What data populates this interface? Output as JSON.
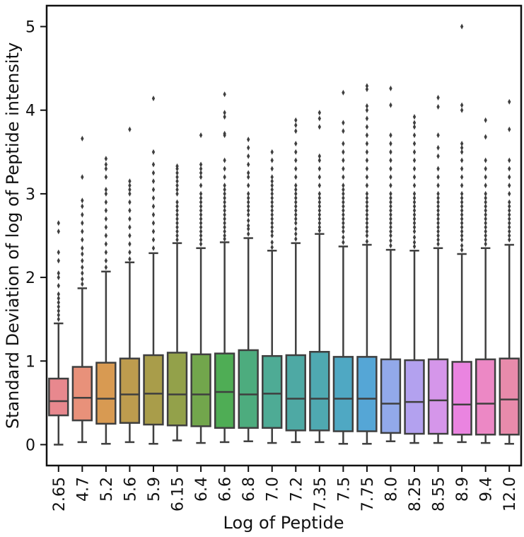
{
  "chart_data": {
    "type": "box",
    "title": "",
    "xlabel": "Log of Peptide",
    "ylabel": "Standard Deviation of log of Peptide intensity",
    "ylim": [
      -0.25,
      5.25
    ],
    "yticks": [
      0,
      1,
      2,
      3,
      4,
      5
    ],
    "grid": false,
    "legend": "none",
    "categories": [
      "2.65",
      "4.7",
      "5.2",
      "5.6",
      "5.9",
      "6.15",
      "6.4",
      "6.6",
      "6.8",
      "7.0",
      "7.2",
      "7.35",
      "7.5",
      "7.75",
      "8.0",
      "8.25",
      "8.55",
      "8.9",
      "9.4",
      "12.0"
    ],
    "boxes": [
      {
        "category": "2.65",
        "color": "#e8888e",
        "min": 0.0,
        "q1": 0.35,
        "median": 0.52,
        "q3": 0.79,
        "whisker_high": 1.45,
        "outliers": [
          1.5,
          1.55,
          1.6,
          1.65,
          1.7,
          1.75,
          1.8,
          1.9,
          2.0,
          2.05,
          2.2,
          2.3,
          2.55,
          2.65
        ]
      },
      {
        "category": "4.7",
        "color": "#e8917a",
        "min": 0.03,
        "q1": 0.29,
        "median": 0.56,
        "q3": 0.93,
        "whisker_high": 1.87,
        "outliers": [
          1.92,
          1.98,
          2.05,
          2.12,
          2.2,
          2.28,
          2.35,
          2.45,
          2.55,
          2.65,
          2.75,
          2.85,
          2.92,
          3.2,
          3.66
        ]
      },
      {
        "category": "5.2",
        "color": "#d89a52",
        "min": 0.01,
        "q1": 0.25,
        "median": 0.55,
        "q3": 0.98,
        "whisker_high": 2.07,
        "outliers": [
          2.12,
          2.2,
          2.3,
          2.4,
          2.5,
          2.6,
          2.7,
          2.8,
          2.9,
          3.0,
          3.05,
          3.2,
          3.3,
          3.35,
          3.42
        ]
      },
      {
        "category": "5.6",
        "color": "#bd9c4e",
        "min": 0.03,
        "q1": 0.26,
        "median": 0.6,
        "q3": 1.03,
        "whisker_high": 2.18,
        "outliers": [
          2.22,
          2.3,
          2.4,
          2.5,
          2.6,
          2.7,
          2.8,
          2.9,
          3.0,
          3.05,
          3.1,
          3.15,
          3.77
        ]
      },
      {
        "category": "5.9",
        "color": "#a99d4a",
        "min": 0.01,
        "q1": 0.24,
        "median": 0.61,
        "q3": 1.07,
        "whisker_high": 2.29,
        "outliers": [
          2.35,
          2.45,
          2.55,
          2.65,
          2.75,
          2.85,
          2.95,
          3.05,
          3.15,
          3.25,
          3.35,
          3.5,
          4.14
        ]
      },
      {
        "category": "6.15",
        "color": "#93a14a",
        "min": 0.05,
        "q1": 0.23,
        "median": 0.6,
        "q3": 1.1,
        "whisker_high": 2.41,
        "outliers": [
          2.45,
          2.5,
          2.55,
          2.6,
          2.65,
          2.7,
          2.75,
          2.8,
          2.85,
          2.9,
          3.0,
          3.05,
          3.1,
          3.15,
          3.2,
          3.25,
          3.3,
          3.33
        ]
      },
      {
        "category": "6.4",
        "color": "#72a64c",
        "min": 0.02,
        "q1": 0.22,
        "median": 0.6,
        "q3": 1.08,
        "whisker_high": 2.35,
        "outliers": [
          2.4,
          2.45,
          2.5,
          2.55,
          2.6,
          2.65,
          2.7,
          2.75,
          2.8,
          2.85,
          2.9,
          2.95,
          3.0,
          3.1,
          3.2,
          3.25,
          3.3,
          3.35,
          3.7
        ]
      },
      {
        "category": "6.6",
        "color": "#4fad55",
        "min": 0.03,
        "q1": 0.2,
        "median": 0.63,
        "q3": 1.09,
        "whisker_high": 2.42,
        "outliers": [
          2.46,
          2.5,
          2.55,
          2.6,
          2.65,
          2.7,
          2.75,
          2.8,
          2.85,
          2.9,
          2.95,
          3.0,
          3.05,
          3.1,
          3.2,
          3.3,
          3.4,
          3.7,
          3.72,
          3.92,
          3.97,
          4.19
        ]
      },
      {
        "category": "6.8",
        "color": "#4dac7e",
        "min": 0.04,
        "q1": 0.2,
        "median": 0.6,
        "q3": 1.13,
        "whisker_high": 2.47,
        "outliers": [
          2.52,
          2.58,
          2.62,
          2.68,
          2.75,
          2.8,
          2.85,
          2.9,
          2.95,
          3.0,
          3.1,
          3.2,
          3.25,
          3.35,
          3.45,
          3.55,
          3.65
        ]
      },
      {
        "category": "7.0",
        "color": "#4eab95",
        "min": 0.02,
        "q1": 0.2,
        "median": 0.61,
        "q3": 1.06,
        "whisker_high": 2.32,
        "outliers": [
          2.36,
          2.42,
          2.5,
          2.55,
          2.6,
          2.65,
          2.7,
          2.75,
          2.8,
          2.85,
          2.9,
          2.95,
          3.0,
          3.05,
          3.1,
          3.15,
          3.2,
          3.3,
          3.4,
          3.5
        ]
      },
      {
        "category": "7.2",
        "color": "#4ea9a4",
        "min": 0.03,
        "q1": 0.17,
        "median": 0.55,
        "q3": 1.07,
        "whisker_high": 2.41,
        "outliers": [
          2.46,
          2.52,
          2.58,
          2.65,
          2.7,
          2.75,
          2.8,
          2.85,
          2.9,
          2.95,
          3.0,
          3.05,
          3.1,
          3.2,
          3.3,
          3.4,
          3.5,
          3.6,
          3.75,
          3.82,
          3.88
        ]
      },
      {
        "category": "7.35",
        "color": "#4fa9b1",
        "min": 0.03,
        "q1": 0.17,
        "median": 0.55,
        "q3": 1.11,
        "whisker_high": 2.52,
        "outliers": [
          2.56,
          2.6,
          2.65,
          2.7,
          2.75,
          2.8,
          2.85,
          2.9,
          2.95,
          3.0,
          3.1,
          3.2,
          3.3,
          3.4,
          3.45,
          3.8,
          3.9,
          3.97
        ]
      },
      {
        "category": "7.5",
        "color": "#4fa8c3",
        "min": 0.01,
        "q1": 0.16,
        "median": 0.55,
        "q3": 1.05,
        "whisker_high": 2.37,
        "outliers": [
          2.42,
          2.48,
          2.55,
          2.6,
          2.65,
          2.7,
          2.75,
          2.8,
          2.85,
          2.9,
          2.95,
          3.0,
          3.05,
          3.1,
          3.2,
          3.3,
          3.4,
          3.5,
          3.6,
          3.75,
          3.85,
          4.21
        ]
      },
      {
        "category": "7.75",
        "color": "#55a6d6",
        "min": 0.01,
        "q1": 0.16,
        "median": 0.55,
        "q3": 1.05,
        "whisker_high": 2.39,
        "outliers": [
          2.43,
          2.5,
          2.55,
          2.6,
          2.65,
          2.7,
          2.75,
          2.8,
          2.85,
          2.9,
          2.95,
          3.0,
          3.1,
          3.2,
          3.3,
          3.4,
          3.5,
          3.6,
          3.7,
          3.8,
          3.9,
          4.0,
          4.05,
          4.25,
          4.29
        ]
      },
      {
        "category": "8.0",
        "color": "#92a9ea",
        "min": 0.04,
        "q1": 0.14,
        "median": 0.49,
        "q3": 1.02,
        "whisker_high": 2.33,
        "outliers": [
          2.38,
          2.44,
          2.5,
          2.55,
          2.6,
          2.65,
          2.7,
          2.75,
          2.8,
          2.85,
          2.9,
          2.95,
          3.0,
          3.1,
          3.2,
          3.3,
          3.4,
          3.5,
          3.6,
          3.7,
          4.06,
          4.26
        ]
      },
      {
        "category": "8.25",
        "color": "#b3a1ef",
        "min": 0.02,
        "q1": 0.13,
        "median": 0.51,
        "q3": 1.01,
        "whisker_high": 2.32,
        "outliers": [
          2.37,
          2.42,
          2.48,
          2.55,
          2.6,
          2.65,
          2.7,
          2.75,
          2.8,
          2.85,
          2.9,
          2.95,
          3.0,
          3.1,
          3.2,
          3.3,
          3.4,
          3.5,
          3.6,
          3.7,
          3.8,
          3.85,
          3.92
        ]
      },
      {
        "category": "8.55",
        "color": "#d596ea",
        "min": 0.02,
        "q1": 0.13,
        "median": 0.53,
        "q3": 1.02,
        "whisker_high": 2.35,
        "outliers": [
          2.4,
          2.45,
          2.5,
          2.55,
          2.6,
          2.65,
          2.7,
          2.75,
          2.8,
          2.85,
          2.9,
          2.95,
          3.0,
          3.1,
          3.2,
          3.3,
          3.45,
          3.55,
          3.7,
          4.04,
          4.15
        ]
      },
      {
        "category": "8.9",
        "color": "#ea84e0",
        "min": 0.03,
        "q1": 0.12,
        "median": 0.48,
        "q3": 0.99,
        "whisker_high": 2.28,
        "outliers": [
          2.33,
          2.38,
          2.45,
          2.5,
          2.55,
          2.6,
          2.65,
          2.7,
          2.75,
          2.8,
          2.85,
          2.9,
          2.95,
          3.0,
          3.1,
          3.2,
          3.3,
          3.4,
          3.5,
          3.55,
          3.6,
          4.0,
          4.06,
          5.0
        ]
      },
      {
        "category": "9.4",
        "color": "#ec88c5",
        "min": 0.02,
        "q1": 0.12,
        "median": 0.49,
        "q3": 1.02,
        "whisker_high": 2.35,
        "outliers": [
          2.4,
          2.45,
          2.5,
          2.55,
          2.6,
          2.65,
          2.7,
          2.75,
          2.8,
          2.85,
          2.9,
          2.95,
          3.0,
          3.1,
          3.2,
          3.3,
          3.4,
          3.68,
          3.88
        ]
      },
      {
        "category": "12.0",
        "color": "#e88bab",
        "min": 0.01,
        "q1": 0.12,
        "median": 0.54,
        "q3": 1.03,
        "whisker_high": 2.39,
        "outliers": [
          2.45,
          2.5,
          2.55,
          2.6,
          2.65,
          2.7,
          2.75,
          2.8,
          2.85,
          2.9,
          3.0,
          3.1,
          3.2,
          3.3,
          3.4,
          3.77,
          4.1
        ]
      }
    ]
  }
}
